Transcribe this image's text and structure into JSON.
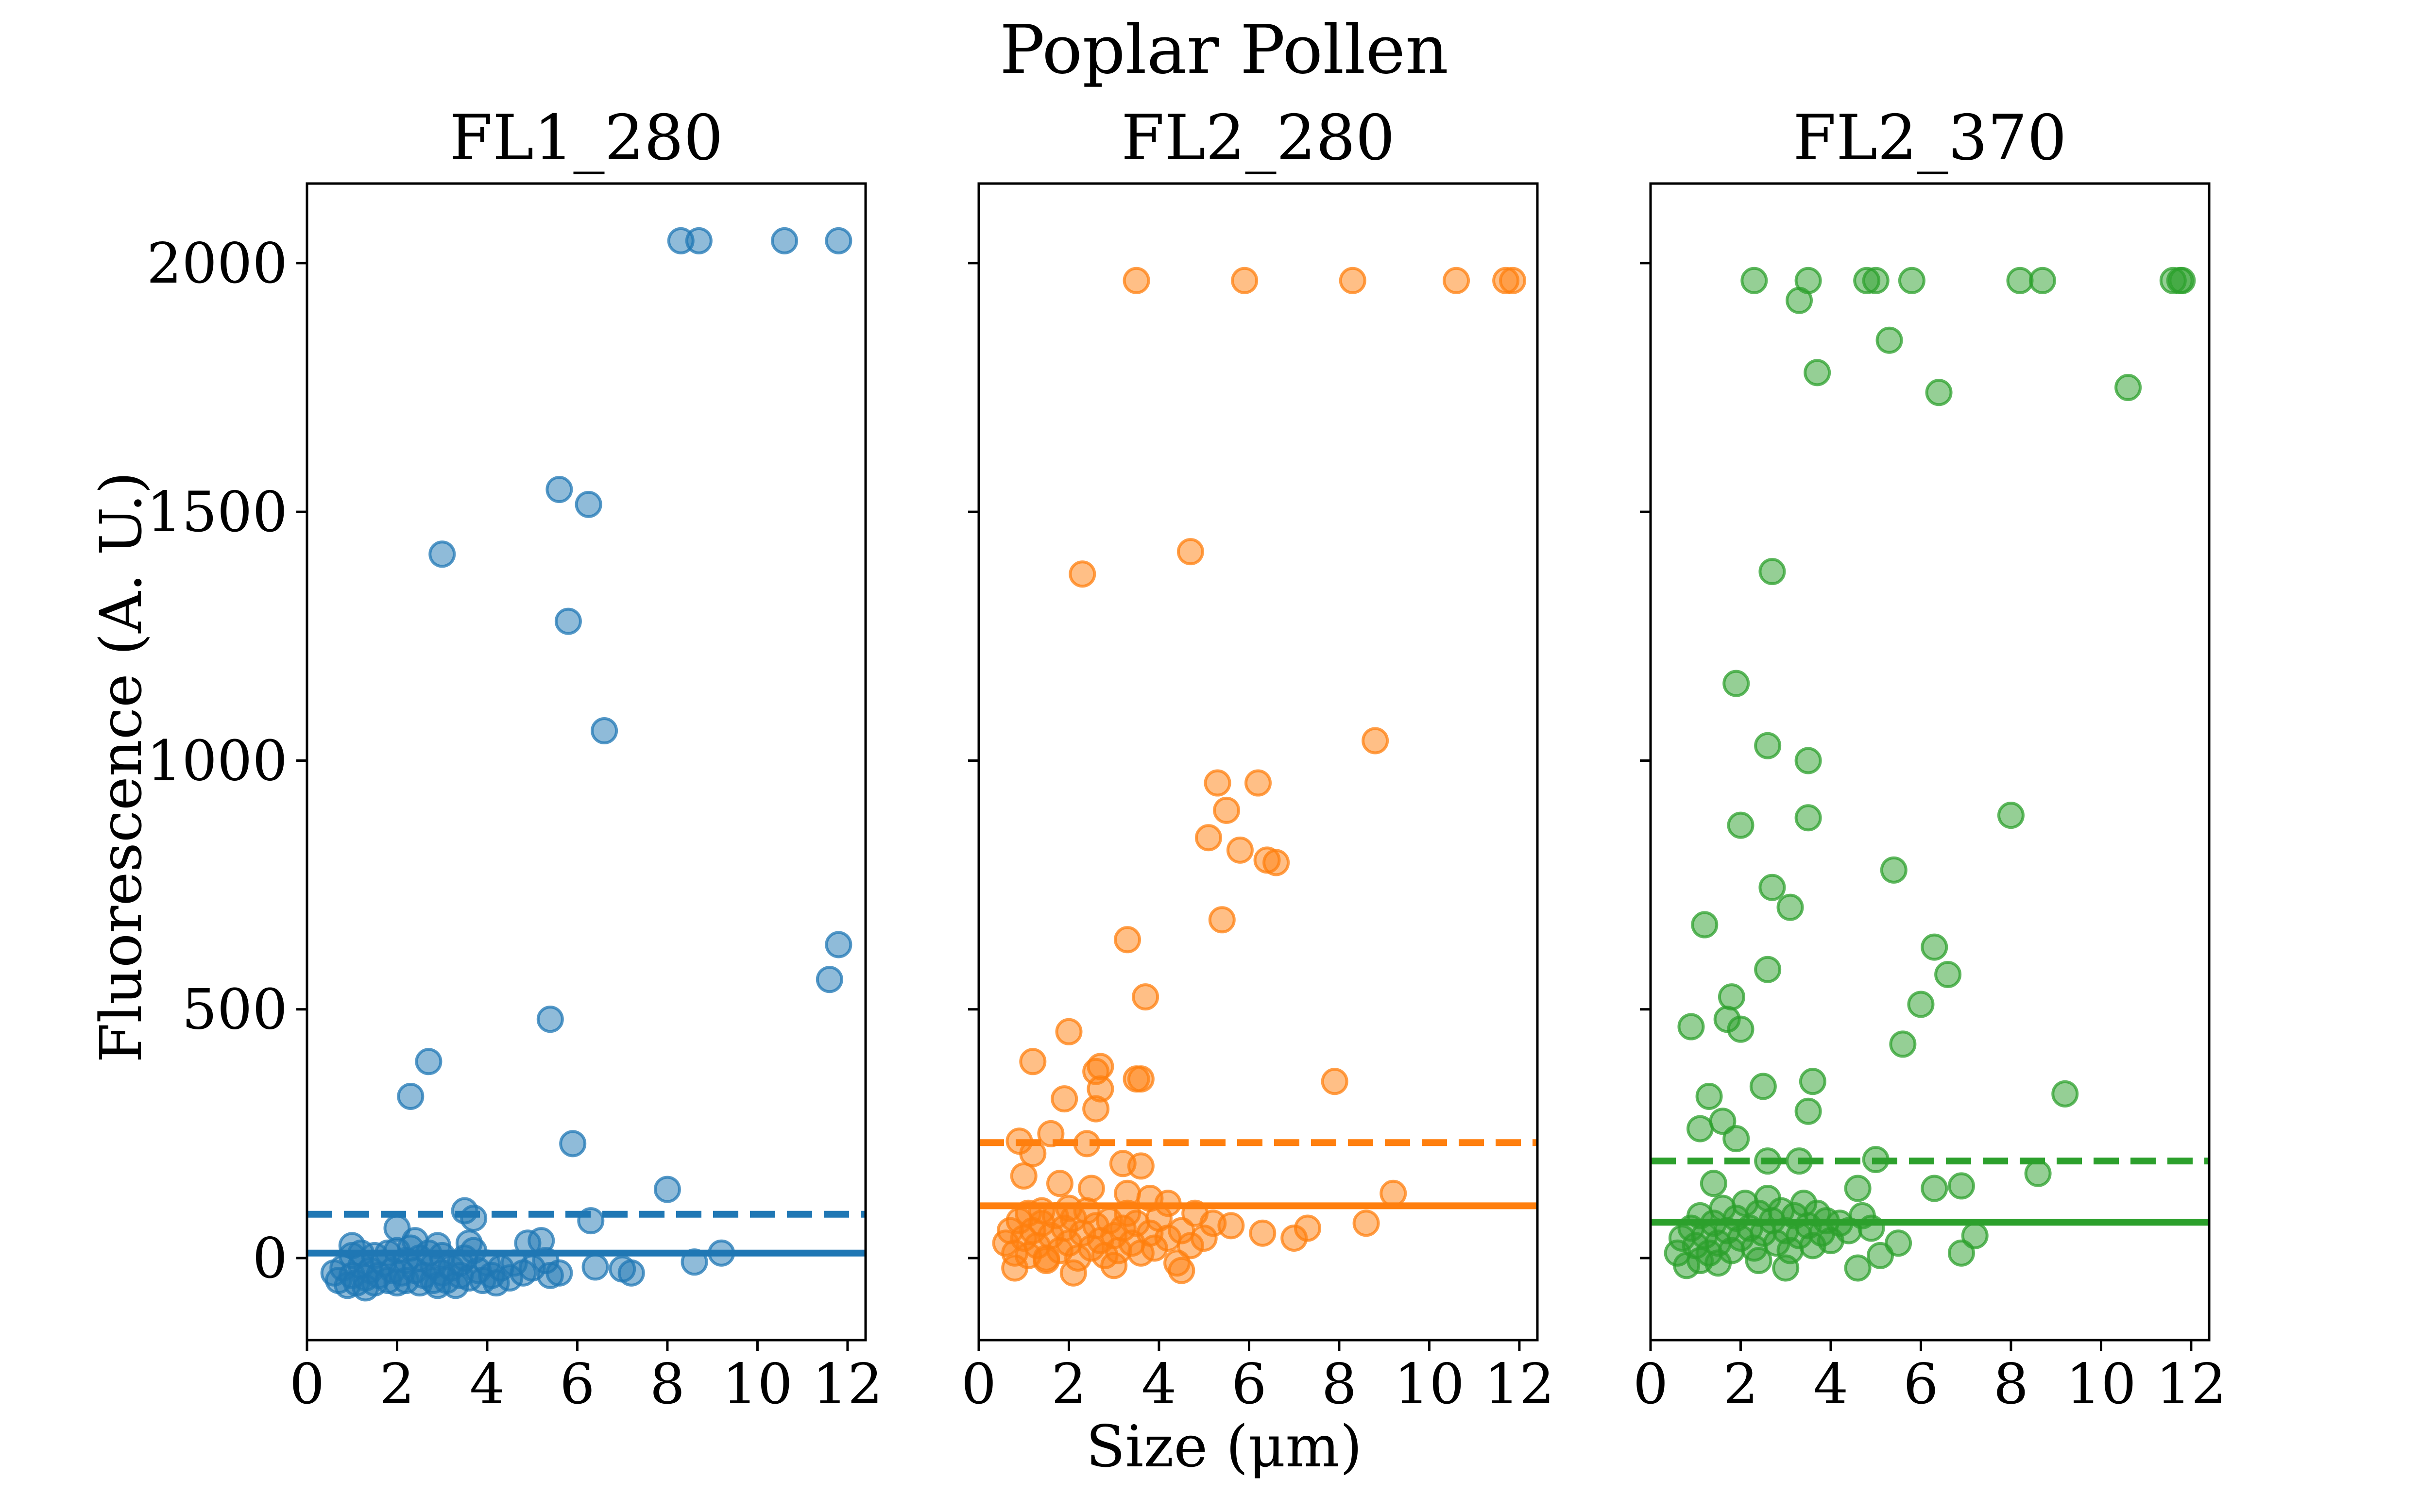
{
  "chart_data": {
    "type": "scatter",
    "title": "Poplar Pollen",
    "xlabel": "Size (μm)",
    "ylabel": "Fluorescence (A. U.)",
    "xlim": [
      0,
      12.4
    ],
    "ylim": [
      -165,
      2160
    ],
    "xticks": [
      "0",
      "2",
      "4",
      "6",
      "8",
      "10",
      "12"
    ],
    "yticks": [
      "0",
      "500",
      "1000",
      "1500",
      "2000"
    ],
    "sharey": true,
    "grid": false,
    "legend": "none",
    "panels": [
      {
        "name": "FL1_280",
        "color": "#1f77b4",
        "solid_line": 10,
        "dashed_line": 88,
        "points": [
          [
            8.3,
            2045
          ],
          [
            8.7,
            2045
          ],
          [
            10.6,
            2045
          ],
          [
            11.8,
            2045
          ],
          [
            5.6,
            1545
          ],
          [
            6.25,
            1515
          ],
          [
            3.0,
            1415
          ],
          [
            5.8,
            1280
          ],
          [
            6.6,
            1060
          ],
          [
            11.8,
            630
          ],
          [
            11.6,
            560
          ],
          [
            5.4,
            480
          ],
          [
            2.7,
            395
          ],
          [
            2.3,
            325
          ],
          [
            5.9,
            230
          ],
          [
            8.0,
            138
          ],
          [
            3.5,
            95
          ],
          [
            3.7,
            80
          ],
          [
            6.3,
            75
          ],
          [
            2.0,
            60
          ],
          [
            9.2,
            10
          ],
          [
            8.6,
            -8
          ],
          [
            6.4,
            -18
          ],
          [
            5.6,
            -30
          ],
          [
            7.0,
            -22
          ],
          [
            7.2,
            -30
          ],
          [
            0.6,
            -30
          ],
          [
            0.7,
            -45
          ],
          [
            0.8,
            -20
          ],
          [
            0.9,
            -55
          ],
          [
            1.0,
            -35
          ],
          [
            1.0,
            5
          ],
          [
            1.1,
            -50
          ],
          [
            1.2,
            -15
          ],
          [
            1.2,
            10
          ],
          [
            1.3,
            -40
          ],
          [
            1.4,
            -25
          ],
          [
            1.5,
            5
          ],
          [
            1.5,
            -50
          ],
          [
            1.6,
            -35
          ],
          [
            1.7,
            -10
          ],
          [
            1.8,
            -45
          ],
          [
            1.9,
            -25
          ],
          [
            2.0,
            15
          ],
          [
            2.0,
            -50
          ],
          [
            2.1,
            -30
          ],
          [
            2.2,
            -5
          ],
          [
            2.2,
            -45
          ],
          [
            2.3,
            20
          ],
          [
            2.4,
            -25
          ],
          [
            2.5,
            -50
          ],
          [
            2.5,
            0
          ],
          [
            2.6,
            -35
          ],
          [
            2.7,
            10
          ],
          [
            2.8,
            -45
          ],
          [
            2.8,
            -15
          ],
          [
            2.9,
            -55
          ],
          [
            3.0,
            -30
          ],
          [
            3.0,
            5
          ],
          [
            3.1,
            -45
          ],
          [
            3.2,
            -20
          ],
          [
            3.3,
            -55
          ],
          [
            3.4,
            -35
          ],
          [
            3.5,
            0
          ],
          [
            3.6,
            -40
          ],
          [
            3.7,
            15
          ],
          [
            3.8,
            -25
          ],
          [
            3.9,
            -45
          ],
          [
            4.0,
            -10
          ],
          [
            4.1,
            -35
          ],
          [
            4.2,
            -50
          ],
          [
            4.3,
            -20
          ],
          [
            4.5,
            -40
          ],
          [
            4.6,
            -10
          ],
          [
            4.8,
            -30
          ],
          [
            4.9,
            30
          ],
          [
            5.0,
            -20
          ],
          [
            5.2,
            35
          ],
          [
            5.3,
            -5
          ],
          [
            5.4,
            -35
          ],
          [
            1.0,
            25
          ],
          [
            1.3,
            -60
          ],
          [
            1.8,
            10
          ],
          [
            2.4,
            35
          ],
          [
            2.9,
            25
          ],
          [
            3.4,
            -10
          ],
          [
            3.6,
            30
          ]
        ]
      },
      {
        "name": "FL2_280",
        "color": "#ff7f0e",
        "solid_line": 105,
        "dashed_line": 232,
        "points": [
          [
            3.5,
            1965
          ],
          [
            5.9,
            1965
          ],
          [
            8.3,
            1965
          ],
          [
            10.6,
            1965
          ],
          [
            11.7,
            1965
          ],
          [
            11.85,
            1965
          ],
          [
            4.7,
            1420
          ],
          [
            2.3,
            1375
          ],
          [
            8.8,
            1040
          ],
          [
            5.3,
            955
          ],
          [
            6.2,
            955
          ],
          [
            5.5,
            900
          ],
          [
            5.1,
            845
          ],
          [
            5.8,
            820
          ],
          [
            6.4,
            800
          ],
          [
            6.6,
            795
          ],
          [
            5.4,
            680
          ],
          [
            3.3,
            640
          ],
          [
            3.7,
            525
          ],
          [
            2.0,
            455
          ],
          [
            1.2,
            395
          ],
          [
            2.7,
            385
          ],
          [
            2.6,
            375
          ],
          [
            3.5,
            360
          ],
          [
            3.6,
            360
          ],
          [
            7.9,
            355
          ],
          [
            2.7,
            340
          ],
          [
            1.9,
            320
          ],
          [
            2.6,
            300
          ],
          [
            0.9,
            235
          ],
          [
            1.6,
            250
          ],
          [
            1.2,
            210
          ],
          [
            2.4,
            230
          ],
          [
            3.6,
            185
          ],
          [
            3.2,
            190
          ],
          [
            1.0,
            165
          ],
          [
            1.8,
            150
          ],
          [
            2.5,
            140
          ],
          [
            3.3,
            130
          ],
          [
            9.2,
            130
          ],
          [
            3.8,
            120
          ],
          [
            4.2,
            110
          ],
          [
            2.0,
            100
          ],
          [
            1.4,
            95
          ],
          [
            0.6,
            30
          ],
          [
            0.7,
            55
          ],
          [
            0.8,
            10
          ],
          [
            0.9,
            75
          ],
          [
            1.0,
            40
          ],
          [
            1.1,
            5
          ],
          [
            1.1,
            90
          ],
          [
            1.2,
            55
          ],
          [
            1.3,
            25
          ],
          [
            1.4,
            70
          ],
          [
            1.5,
            0
          ],
          [
            1.6,
            45
          ],
          [
            1.7,
            85
          ],
          [
            1.8,
            15
          ],
          [
            1.9,
            60
          ],
          [
            2.0,
            30
          ],
          [
            2.1,
            80
          ],
          [
            2.2,
            0
          ],
          [
            2.3,
            50
          ],
          [
            2.4,
            95
          ],
          [
            2.5,
            20
          ],
          [
            2.6,
            65
          ],
          [
            2.7,
            35
          ],
          [
            2.8,
            5
          ],
          [
            2.9,
            75
          ],
          [
            3.0,
            45
          ],
          [
            3.1,
            15
          ],
          [
            3.2,
            60
          ],
          [
            3.3,
            90
          ],
          [
            3.4,
            30
          ],
          [
            3.5,
            70
          ],
          [
            3.6,
            10
          ],
          [
            3.8,
            50
          ],
          [
            3.9,
            20
          ],
          [
            4.0,
            80
          ],
          [
            4.2,
            40
          ],
          [
            4.4,
            -10
          ],
          [
            4.5,
            55
          ],
          [
            4.7,
            25
          ],
          [
            4.8,
            90
          ],
          [
            5.0,
            40
          ],
          [
            5.2,
            70
          ],
          [
            5.6,
            65
          ],
          [
            6.3,
            50
          ],
          [
            7.0,
            40
          ],
          [
            7.3,
            60
          ],
          [
            8.6,
            70
          ],
          [
            0.8,
            -20
          ],
          [
            1.5,
            -5
          ],
          [
            2.1,
            -30
          ],
          [
            3.0,
            -15
          ],
          [
            4.5,
            -25
          ]
        ]
      },
      {
        "name": "FL2_370",
        "color": "#2ca02c",
        "solid_line": 72,
        "dashed_line": 195,
        "points": [
          [
            2.3,
            1965
          ],
          [
            3.5,
            1965
          ],
          [
            4.8,
            1965
          ],
          [
            5.0,
            1965
          ],
          [
            5.8,
            1965
          ],
          [
            8.2,
            1965
          ],
          [
            8.7,
            1965
          ],
          [
            11.6,
            1965
          ],
          [
            11.75,
            1965
          ],
          [
            11.8,
            1965
          ],
          [
            3.3,
            1925
          ],
          [
            5.3,
            1845
          ],
          [
            3.7,
            1780
          ],
          [
            10.6,
            1750
          ],
          [
            6.4,
            1740
          ],
          [
            2.7,
            1380
          ],
          [
            1.9,
            1155
          ],
          [
            2.6,
            1030
          ],
          [
            3.5,
            1000
          ],
          [
            3.5,
            885
          ],
          [
            8.0,
            890
          ],
          [
            2.0,
            870
          ],
          [
            5.4,
            780
          ],
          [
            2.7,
            745
          ],
          [
            3.1,
            705
          ],
          [
            1.2,
            670
          ],
          [
            6.3,
            625
          ],
          [
            6.6,
            570
          ],
          [
            2.6,
            580
          ],
          [
            1.8,
            525
          ],
          [
            6.0,
            510
          ],
          [
            1.7,
            480
          ],
          [
            2.0,
            460
          ],
          [
            0.9,
            465
          ],
          [
            5.6,
            430
          ],
          [
            3.6,
            355
          ],
          [
            2.5,
            345
          ],
          [
            1.3,
            325
          ],
          [
            9.2,
            330
          ],
          [
            3.5,
            295
          ],
          [
            1.6,
            275
          ],
          [
            1.1,
            260
          ],
          [
            1.9,
            240
          ],
          [
            2.6,
            195
          ],
          [
            3.3,
            195
          ],
          [
            5.0,
            198
          ],
          [
            8.6,
            170
          ],
          [
            1.4,
            150
          ],
          [
            6.3,
            140
          ],
          [
            6.9,
            145
          ],
          [
            0.6,
            10
          ],
          [
            0.7,
            40
          ],
          [
            0.8,
            -15
          ],
          [
            0.9,
            60
          ],
          [
            1.0,
            25
          ],
          [
            1.1,
            -5
          ],
          [
            1.1,
            85
          ],
          [
            1.2,
            45
          ],
          [
            1.3,
            10
          ],
          [
            1.4,
            70
          ],
          [
            1.5,
            30
          ],
          [
            1.6,
            100
          ],
          [
            1.7,
            55
          ],
          [
            1.8,
            15
          ],
          [
            1.9,
            80
          ],
          [
            2.0,
            40
          ],
          [
            2.1,
            110
          ],
          [
            2.2,
            60
          ],
          [
            2.3,
            20
          ],
          [
            2.4,
            90
          ],
          [
            2.5,
            50
          ],
          [
            2.6,
            120
          ],
          [
            2.7,
            75
          ],
          [
            2.8,
            30
          ],
          [
            2.9,
            95
          ],
          [
            3.0,
            55
          ],
          [
            3.1,
            15
          ],
          [
            3.2,
            85
          ],
          [
            3.3,
            45
          ],
          [
            3.4,
            110
          ],
          [
            3.5,
            65
          ],
          [
            3.6,
            25
          ],
          [
            3.7,
            90
          ],
          [
            3.8,
            50
          ],
          [
            3.9,
            75
          ],
          [
            4.0,
            35
          ],
          [
            4.2,
            70
          ],
          [
            4.4,
            55
          ],
          [
            4.6,
            140
          ],
          [
            4.7,
            85
          ],
          [
            4.9,
            60
          ],
          [
            5.1,
            5
          ],
          [
            5.5,
            30
          ],
          [
            6.9,
            10
          ],
          [
            7.2,
            45
          ],
          [
            4.6,
            -20
          ],
          [
            1.5,
            -10
          ],
          [
            2.4,
            -5
          ],
          [
            3.0,
            -20
          ]
        ]
      }
    ]
  }
}
